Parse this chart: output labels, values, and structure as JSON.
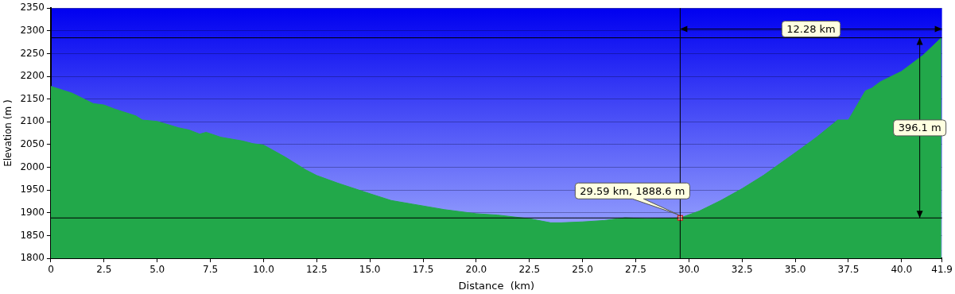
{
  "chart_data": {
    "type": "area",
    "xlabel": "Distance  (km)",
    "ylabel": "Elevation (m )",
    "xlim": [
      0,
      41.9
    ],
    "ylim": [
      1800,
      2350
    ],
    "xticks": [
      0,
      {
        "value": 2.5,
        "label": "2.5"
      },
      {
        "value": 5,
        "label": "5.0"
      },
      {
        "value": 7.5,
        "label": "7.5"
      },
      {
        "value": 10,
        "label": "10.0"
      },
      {
        "value": 12.5,
        "label": "12.5"
      },
      {
        "value": 15,
        "label": "15.0"
      },
      {
        "value": 17.5,
        "label": "17.5"
      },
      {
        "value": 20,
        "label": "20.0"
      },
      {
        "value": 22.5,
        "label": "22.5"
      },
      {
        "value": 25,
        "label": "25.0"
      },
      {
        "value": 27.5,
        "label": "27.5"
      },
      {
        "value": 30,
        "label": "30.0"
      },
      {
        "value": 32.5,
        "label": "32.5"
      },
      {
        "value": 35,
        "label": "35.0"
      },
      {
        "value": 37.5,
        "label": "37.5"
      },
      {
        "value": 40,
        "label": "40.0"
      },
      41.9
    ],
    "yticks": [
      1800,
      1850,
      1900,
      1950,
      2000,
      2050,
      2100,
      2150,
      2200,
      2250,
      2300,
      2350
    ],
    "grid": "y",
    "legend": false,
    "series": [
      {
        "color": "#22a84a",
        "x": [
          0,
          1,
          2,
          2.5,
          3,
          4,
          4.3,
          5,
          6,
          6.5,
          7,
          7.3,
          8,
          9,
          9.5,
          10,
          11,
          12,
          12.5,
          13.5,
          15,
          16,
          17,
          18.5,
          20,
          21,
          22.5,
          23.5,
          24,
          25,
          26,
          27,
          28,
          29.59,
          30.5,
          31.5,
          32.5,
          33.5,
          35,
          36,
          37,
          37.5,
          38.3,
          38.6,
          39,
          40,
          41,
          41.87
        ],
        "values": [
          2178,
          2163,
          2140,
          2137,
          2128,
          2113,
          2104,
          2101,
          2087,
          2082,
          2073,
          2077,
          2066,
          2058,
          2052,
          2049,
          2023,
          1994,
          1982,
          1965,
          1942,
          1927,
          1919,
          1907,
          1898,
          1895,
          1887,
          1878,
          1878,
          1880,
          1883,
          1889,
          1887,
          1888.6,
          1904,
          1927,
          1953,
          1982,
          2032,
          2066,
          2104,
          2104,
          2168,
          2174,
          2188,
          2211,
          2246,
          2284.7
        ]
      },
      {
        "type": "scatter",
        "color": "#cc2222",
        "marker": "square",
        "x": [
          29.59
        ],
        "values": [
          1888.6
        ]
      }
    ],
    "ref_lines": [
      {
        "axis": "x",
        "value": 29.59,
        "color": "#000000"
      },
      {
        "axis": "y",
        "value": 1888.6,
        "color": "#000000"
      },
      {
        "axis": "y",
        "value": 2284.7,
        "color": "#000000"
      }
    ],
    "annotations": [
      {
        "text": "29.59 km, 1888.6 m",
        "x": 29.59,
        "y": 1888.6
      },
      "12.28 km",
      "396.1 m"
    ]
  }
}
